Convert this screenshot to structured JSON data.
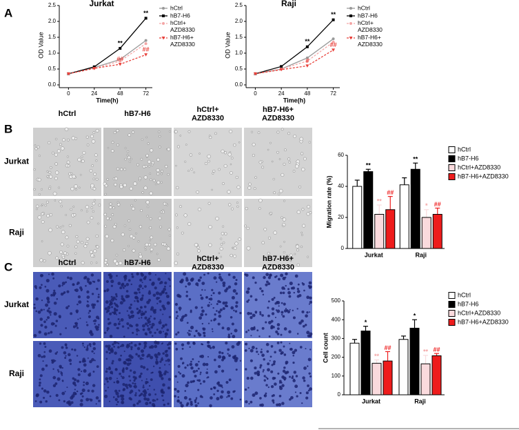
{
  "panels": [
    "A",
    "B",
    "C"
  ],
  "image_grids": [
    {
      "columns": [
        "hCtrl",
        "hB7-H6",
        "hCtrl+\nAZD8330",
        "hB7-H6+\nAZD8330"
      ],
      "rows": [
        "Jurkat",
        "Raji"
      ]
    },
    {
      "columns": [
        "hCtrl",
        "hB7-H6",
        "hCtrl+\nAZD8330",
        "hB7-H6+\nAZD8330"
      ],
      "rows": [
        "Jurkat",
        "Raji"
      ]
    }
  ],
  "chart_data": [
    {
      "type": "line",
      "title": "Jurkat",
      "x_label": "Time(h)",
      "y_label": "OD Value",
      "x": [
        0,
        24,
        48,
        72
      ],
      "xlim": [
        -6,
        78
      ],
      "xticks": [
        0,
        24,
        48,
        72
      ],
      "ylim": [
        0,
        2.5
      ],
      "yticks": [
        {
          "value": 0,
          "label": "0.0"
        },
        0.5,
        {
          "value": 1,
          "label": "1.0"
        },
        1.5,
        {
          "value": 2,
          "label": "2.0"
        },
        2.5
      ],
      "series": [
        {
          "name": "hCtrl",
          "color": "#999999",
          "marker": "circle",
          "line_style": "solid",
          "values": [
            0.35,
            0.55,
            0.8,
            1.4
          ]
        },
        {
          "name": "hB7-H6",
          "color": "#000000",
          "marker": "square",
          "line_style": "solid",
          "values": [
            0.35,
            0.57,
            1.15,
            2.1
          ],
          "point_annotations": [
            null,
            null,
            "**",
            "**"
          ]
        },
        {
          "name": "hCtrl+\nAZD8330",
          "color": "#f4a6a6",
          "marker": "circle",
          "line_style": "dashed",
          "values": [
            0.35,
            0.52,
            0.75,
            1.3
          ]
        },
        {
          "name": "hB7-H6+\nAZD8330",
          "color": "#e8403a",
          "marker": "triangle",
          "line_style": "dashed",
          "values": [
            0.35,
            0.52,
            0.65,
            0.95
          ],
          "point_annotations": [
            null,
            null,
            "##",
            "##"
          ]
        }
      ]
    },
    {
      "type": "line",
      "title": "Raji",
      "x_label": "Time(h)",
      "y_label": "OD Value",
      "x": [
        0,
        24,
        48,
        72
      ],
      "xlim": [
        -6,
        78
      ],
      "xticks": [
        0,
        24,
        48,
        72
      ],
      "ylim": [
        0,
        2.5
      ],
      "yticks": [
        {
          "value": 0,
          "label": "0.0"
        },
        0.5,
        {
          "value": 1,
          "label": "1.0"
        },
        1.5,
        {
          "value": 2,
          "label": "2.0"
        },
        2.5
      ],
      "series": [
        {
          "name": "hCtrl",
          "color": "#999999",
          "marker": "circle",
          "line_style": "solid",
          "values": [
            0.35,
            0.5,
            0.85,
            1.45
          ]
        },
        {
          "name": "hB7-H6",
          "color": "#000000",
          "marker": "square",
          "line_style": "solid",
          "values": [
            0.35,
            0.58,
            1.2,
            2.05
          ],
          "point_annotations": [
            null,
            null,
            "**",
            "**"
          ]
        },
        {
          "name": "hCtrl+\nAZD8330",
          "color": "#f4a6a6",
          "marker": "circle",
          "line_style": "dashed",
          "values": [
            0.35,
            0.5,
            0.75,
            1.35
          ]
        },
        {
          "name": "hB7-H6+\nAZD8330",
          "color": "#e8403a",
          "marker": "triangle",
          "line_style": "dashed",
          "values": [
            0.35,
            0.48,
            0.6,
            1.1
          ],
          "point_annotations": [
            null,
            null,
            "#",
            "##"
          ]
        }
      ]
    },
    {
      "type": "bar",
      "y_label": "Migration rate (%)",
      "categories": [
        "Jurkat",
        "Raji"
      ],
      "ylim": [
        0,
        60
      ],
      "yticks": [
        0,
        20,
        40,
        60
      ],
      "series": [
        {
          "name": "hCtrl",
          "color": "#ffffff",
          "values": [
            40,
            41
          ],
          "errors": [
            4,
            4.5
          ]
        },
        {
          "name": "hB7-H6",
          "color": "#000000",
          "values": [
            49.5,
            51
          ],
          "errors": [
            1.5,
            4
          ],
          "value_annotations": [
            "**",
            "**"
          ],
          "annotation_color": "#000000"
        },
        {
          "name": "hCtrl+AZD8330",
          "color": "#fadadd",
          "values": [
            22,
            20
          ],
          "errors": [
            6,
            5
          ],
          "value_annotations": [
            "**",
            "*"
          ],
          "annotation_color": "#f4a6a6"
        },
        {
          "name": "hB7-H6+AZD8330",
          "color": "#ee1c1c",
          "values": [
            25,
            22
          ],
          "errors": [
            8.5,
            4
          ],
          "value_annotations": [
            "##",
            "##"
          ],
          "annotation_color": "#ee1c1c"
        }
      ]
    },
    {
      "type": "bar",
      "y_label": "Cell count",
      "categories": [
        "Jurkat",
        "Raji"
      ],
      "ylim": [
        0,
        500
      ],
      "yticks": [
        0,
        100,
        200,
        300,
        400,
        500
      ],
      "series": [
        {
          "name": "hCtrl",
          "color": "#ffffff",
          "values": [
            275,
            295
          ],
          "errors": [
            20,
            18
          ]
        },
        {
          "name": "hB7-H6",
          "color": "#000000",
          "values": [
            340,
            355
          ],
          "errors": [
            25,
            45
          ],
          "value_annotations": [
            "*",
            "*"
          ],
          "annotation_color": "#000000"
        },
        {
          "name": "hCtrl+AZD8330",
          "color": "#fadadd",
          "values": [
            168,
            165
          ],
          "errors": [
            18,
            45
          ],
          "value_annotations": [
            "**",
            "**"
          ],
          "annotation_color": "#f4a6a6"
        },
        {
          "name": "hB7-H6+AZD8330",
          "color": "#ee1c1c",
          "values": [
            180,
            208
          ],
          "errors": [
            50,
            12
          ],
          "value_annotations": [
            "##",
            "##"
          ],
          "annotation_color": "#ee1c1c"
        }
      ]
    }
  ]
}
